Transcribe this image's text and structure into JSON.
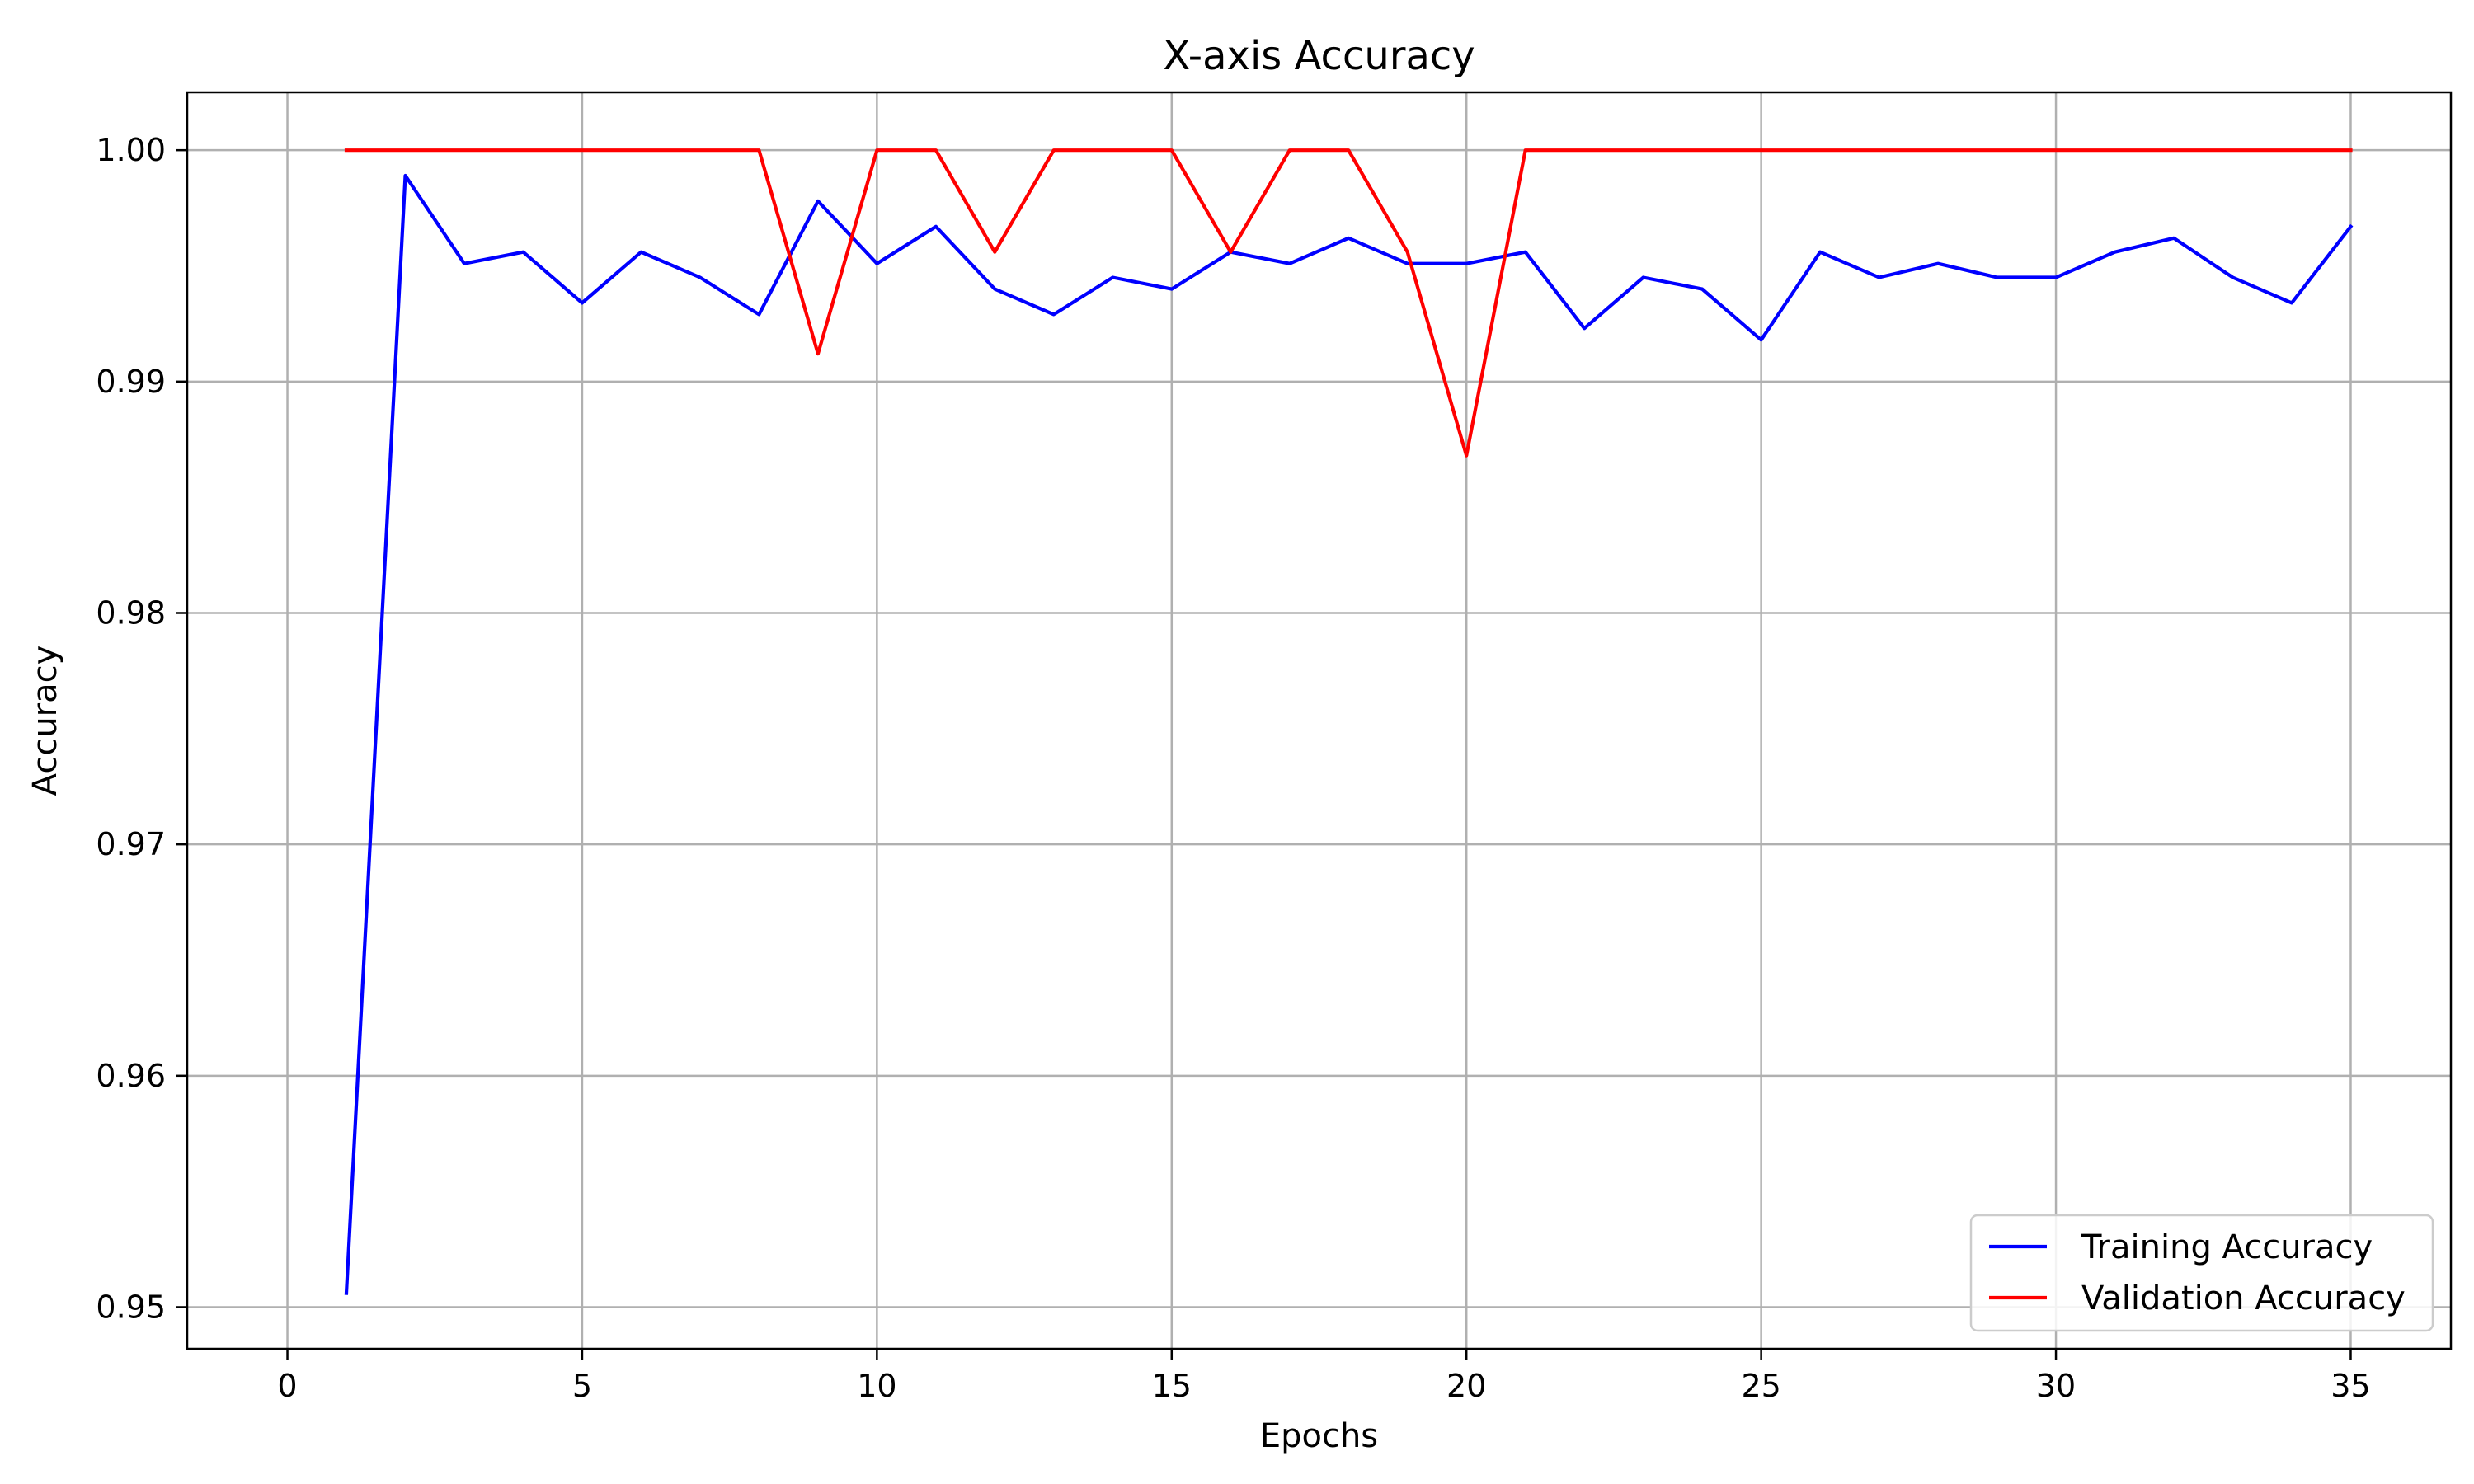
{
  "chart_data": {
    "type": "line",
    "title": "X-axis Accuracy",
    "xlabel": "Epochs",
    "ylabel": "Accuracy",
    "xlim": [
      -1.7,
      36.7
    ],
    "ylim": [
      0.9482,
      1.0025
    ],
    "xticks": [
      0,
      5,
      10,
      15,
      20,
      25,
      30,
      35
    ],
    "xtick_labels": [
      "0",
      "5",
      "10",
      "15",
      "20",
      "25",
      "30",
      "35"
    ],
    "yticks": [
      0.95,
      0.96,
      0.97,
      0.98,
      0.99,
      1.0
    ],
    "ytick_labels": [
      "0.95",
      "0.96",
      "0.97",
      "0.98",
      "0.99",
      "1.00"
    ],
    "grid": true,
    "legend_position": "lower-right",
    "x": [
      1,
      2,
      3,
      4,
      5,
      6,
      7,
      8,
      9,
      10,
      11,
      12,
      13,
      14,
      15,
      16,
      17,
      18,
      19,
      20,
      21,
      22,
      23,
      24,
      25,
      26,
      27,
      28,
      29,
      30,
      31,
      32,
      33,
      34,
      35
    ],
    "series": [
      {
        "name": "Training Accuracy",
        "color": "#0000ff",
        "values": [
          0.9506,
          0.9989,
          0.9951,
          0.9956,
          0.9934,
          0.9956,
          0.9945,
          0.9929,
          0.9978,
          0.9951,
          0.9967,
          0.994,
          0.9929,
          0.9945,
          0.994,
          0.9956,
          0.9951,
          0.9962,
          0.9951,
          0.9951,
          0.9956,
          0.9923,
          0.9945,
          0.994,
          0.9918,
          0.9956,
          0.9945,
          0.9951,
          0.9945,
          0.9945,
          0.9956,
          0.9962,
          0.9945,
          0.9934,
          0.9967
        ]
      },
      {
        "name": "Validation Accuracy",
        "color": "#ff0000",
        "values": [
          1.0,
          1.0,
          1.0,
          1.0,
          1.0,
          1.0,
          1.0,
          1.0,
          0.9912,
          1.0,
          1.0,
          0.9956,
          1.0,
          1.0,
          1.0,
          0.9956,
          1.0,
          1.0,
          0.9956,
          0.9868,
          1.0,
          1.0,
          1.0,
          1.0,
          1.0,
          1.0,
          1.0,
          1.0,
          1.0,
          1.0,
          1.0,
          1.0,
          1.0,
          1.0,
          1.0
        ]
      }
    ]
  }
}
